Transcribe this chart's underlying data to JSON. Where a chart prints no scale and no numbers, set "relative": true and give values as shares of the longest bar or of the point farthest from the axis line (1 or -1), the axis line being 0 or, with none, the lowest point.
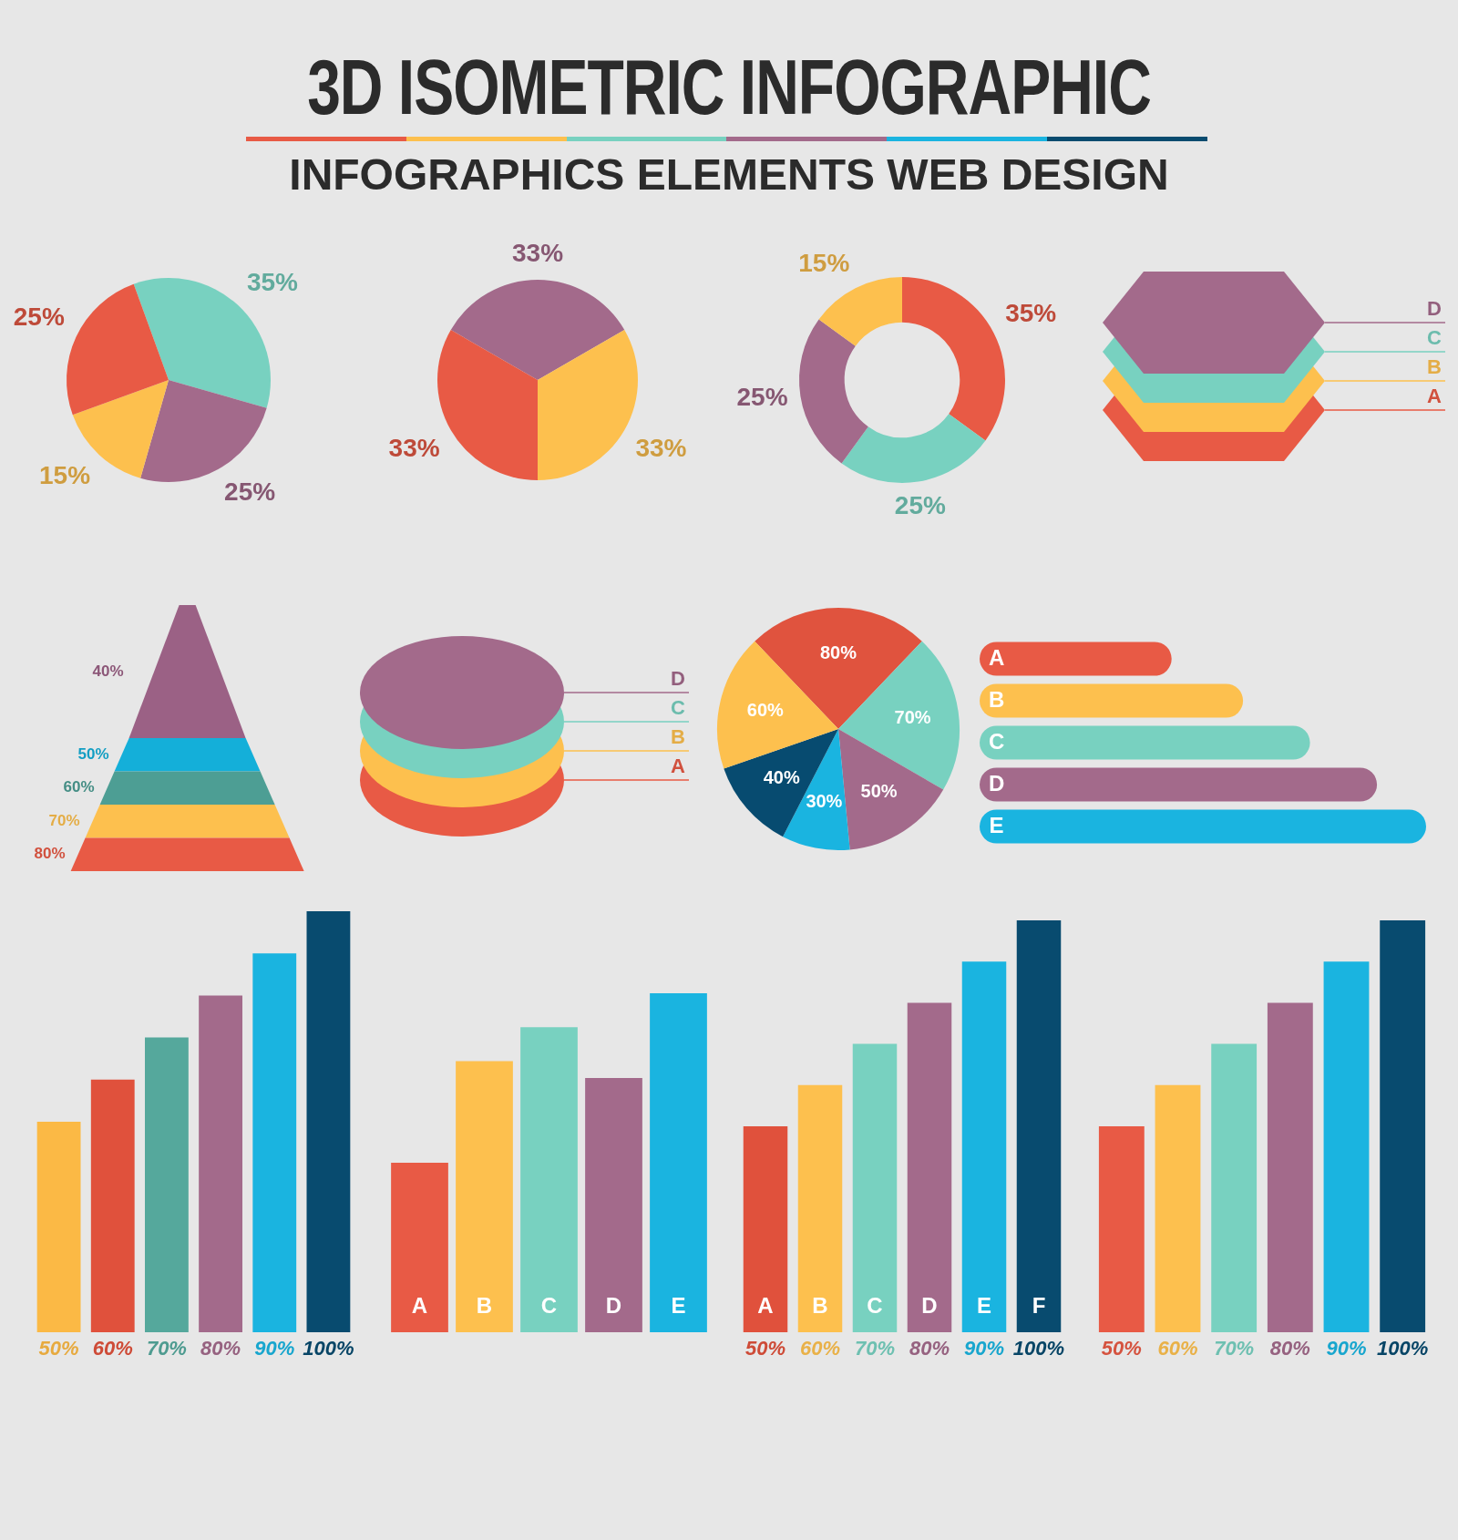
{
  "chart_data": [
    {
      "type": "pie",
      "title": "3D ISOMETRIC INFOGRAPHIC",
      "subtitle": "INFOGRAPHICS ELEMENTS WEB DESIGN",
      "categories": [
        null,
        null,
        null,
        null
      ],
      "values": [
        35,
        25,
        15,
        25
      ],
      "colors": [
        "#78d1c0",
        "#a36a8b",
        "#fdc04e",
        "#e85a45"
      ],
      "value_labels": [
        "35%",
        "25%",
        "15%",
        "25%"
      ]
    },
    {
      "type": "pie",
      "categories": [
        null,
        null,
        null
      ],
      "values": [
        33,
        33,
        33
      ],
      "colors": [
        "#a36a8b",
        "#fdc04e",
        "#e85a45"
      ],
      "value_labels": [
        "33%",
        "33%",
        "33%"
      ]
    },
    {
      "type": "donut",
      "categories": [
        null,
        null,
        null,
        null
      ],
      "values": [
        35,
        25,
        25,
        15
      ],
      "colors": [
        "#e85a45",
        "#78d1c0",
        "#a36a8b",
        "#fdc04e"
      ],
      "value_labels": [
        "35%",
        "25%",
        "25%",
        "15%"
      ]
    },
    {
      "type": "other",
      "categories": [
        "D",
        "C",
        "B",
        "A"
      ],
      "colors": [
        "#a36a8b",
        "#78d1c0",
        "#fdc04e",
        "#e85a45"
      ]
    },
    {
      "type": "other",
      "values": [
        40,
        50,
        60,
        70,
        80
      ],
      "value_labels": [
        "40%",
        "50%",
        "60%",
        "70%",
        "80%"
      ],
      "colors": [
        "#9b6185",
        "#14afd9",
        "#4d9e94",
        "#fdc04e",
        "#e85a45"
      ]
    },
    {
      "type": "other",
      "categories": [
        "D",
        "C",
        "B",
        "A"
      ],
      "colors": [
        "#a36a8b",
        "#78d1c0",
        "#fdc04e",
        "#e85a45"
      ]
    },
    {
      "type": "pie",
      "categories": [
        null,
        null,
        null,
        null,
        null,
        null
      ],
      "values": [
        80,
        70,
        50,
        30,
        40,
        60
      ],
      "colors": [
        "#e0533e",
        "#78d1c0",
        "#a36a8b",
        "#1ab4e0",
        "#074b70",
        "#fdc04e"
      ],
      "value_labels": [
        "80%",
        "70%",
        "50%",
        "30%",
        "40%",
        "60%"
      ]
    },
    {
      "type": "bar",
      "orientation": "horizontal",
      "relative": true,
      "tick_labels": false,
      "categories": [
        "A",
        "B",
        "C",
        "D",
        "E"
      ],
      "values": [
        0.43,
        0.59,
        0.74,
        0.89,
        1
      ],
      "colors": [
        "#e85a45",
        "#fdc04e",
        "#78d1c0",
        "#a36a8b",
        "#1ab4e0"
      ]
    },
    {
      "type": "bar",
      "tick_labels": false,
      "categories": [
        null,
        null,
        null,
        null,
        null,
        null
      ],
      "values": [
        50,
        60,
        70,
        80,
        90,
        100
      ],
      "colors": [
        "#fbb945",
        "#e0513c",
        "#55a89c",
        "#a36a8b",
        "#1ab4e0",
        "#084b6f"
      ],
      "value_labels": [
        "50%",
        "60%",
        "70%",
        "80%",
        "90%",
        "100%"
      ]
    },
    {
      "type": "bar",
      "relative": true,
      "tick_labels": false,
      "categories": [
        "A",
        "B",
        "C",
        "D",
        "E"
      ],
      "values": [
        0.5,
        0.8,
        0.9,
        0.75,
        1
      ],
      "colors": [
        "#e85a45",
        "#fdc04e",
        "#78d1c0",
        "#a36a8b",
        "#1ab4e0"
      ]
    },
    {
      "type": "bar",
      "tick_labels": false,
      "categories": [
        "A",
        "B",
        "C",
        "D",
        "E",
        "F"
      ],
      "values": [
        50,
        60,
        70,
        80,
        90,
        100
      ],
      "colors": [
        "#e0513c",
        "#fdc04e",
        "#78d1c0",
        "#a36a8b",
        "#1ab4e0",
        "#084b6f"
      ],
      "value_labels": [
        "50%",
        "60%",
        "70%",
        "80%",
        "90%",
        "100%"
      ]
    },
    {
      "type": "bar",
      "tick_labels": false,
      "categories": [
        null,
        null,
        null,
        null,
        null,
        null
      ],
      "values": [
        50,
        60,
        70,
        80,
        90,
        100
      ],
      "colors": [
        "#e85a45",
        "#fdc04e",
        "#78d1c0",
        "#a36a8b",
        "#1ab4e0",
        "#084b6f"
      ],
      "value_labels": [
        "50%",
        "60%",
        "70%",
        "80%",
        "90%",
        "100%"
      ]
    }
  ]
}
